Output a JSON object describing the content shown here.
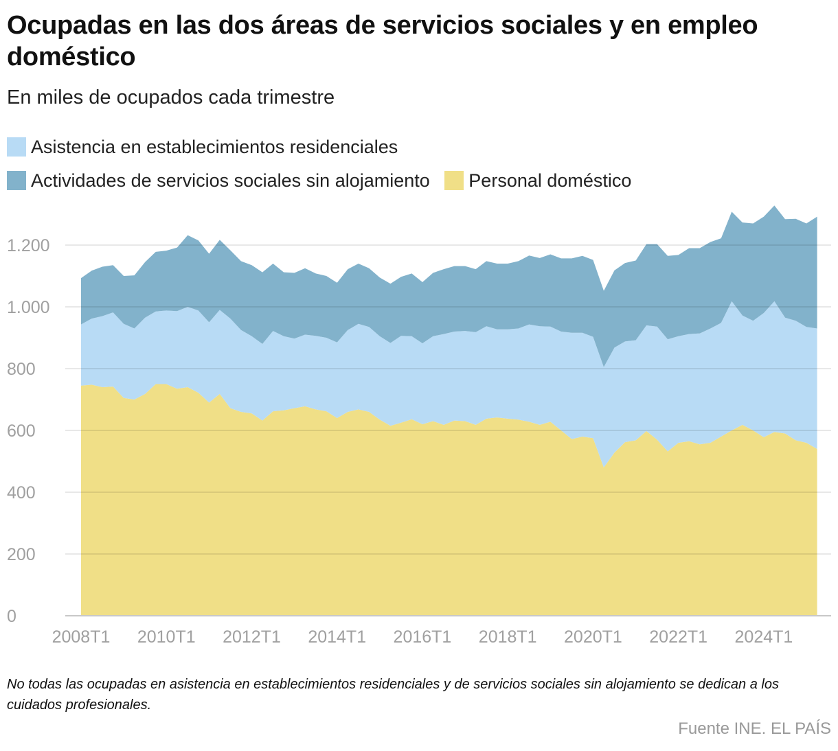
{
  "title": "Ocupadas en las dos áreas de servicios sociales y en empleo doméstico",
  "subtitle": "En miles de ocupados cada trimestre",
  "note": "No todas las ocupadas en asistencia en establecimientos residenciales y de servicios sociales sin alojamiento se dedican a los cuidados profesionales.",
  "source": "Fuente INE. EL PAÍS",
  "chart_data": {
    "type": "area",
    "stacked": true,
    "title": "Ocupadas en las dos áreas de servicios sociales y en empleo doméstico",
    "subtitle": "En miles de ocupados cada trimestre",
    "xlabel": "",
    "ylabel": "",
    "ylim": [
      0,
      1330
    ],
    "yticks": [
      0,
      200,
      400,
      600,
      800,
      1000,
      1200
    ],
    "ytick_labels": [
      "0",
      "200",
      "400",
      "600",
      "800",
      "1.000",
      "1.200"
    ],
    "xtick_labels": [
      "2008T1",
      "2010T1",
      "2012T1",
      "2014T1",
      "2016T1",
      "2018T1",
      "2020T1",
      "2022T1",
      "2024T1"
    ],
    "grid": true,
    "legend": "top",
    "categories": [
      "2008T1",
      "2008T2",
      "2008T3",
      "2008T4",
      "2009T1",
      "2009T2",
      "2009T3",
      "2009T4",
      "2010T1",
      "2010T2",
      "2010T3",
      "2010T4",
      "2011T1",
      "2011T2",
      "2011T3",
      "2011T4",
      "2012T1",
      "2012T2",
      "2012T3",
      "2012T4",
      "2013T1",
      "2013T2",
      "2013T3",
      "2013T4",
      "2014T1",
      "2014T2",
      "2014T3",
      "2014T4",
      "2015T1",
      "2015T2",
      "2015T3",
      "2015T4",
      "2016T1",
      "2016T2",
      "2016T3",
      "2016T4",
      "2017T1",
      "2017T2",
      "2017T3",
      "2017T4",
      "2018T1",
      "2018T2",
      "2018T3",
      "2018T4",
      "2019T1",
      "2019T2",
      "2019T3",
      "2019T4",
      "2020T1",
      "2020T2",
      "2020T3",
      "2020T4",
      "2021T1",
      "2021T2",
      "2021T3",
      "2021T4",
      "2022T1",
      "2022T2",
      "2022T3",
      "2022T4",
      "2023T1",
      "2023T2",
      "2023T3",
      "2023T4",
      "2024T1",
      "2024T2",
      "2024T3",
      "2024T4",
      "2025T1",
      "2025T2"
    ],
    "series": [
      {
        "name": "Personal doméstico",
        "color": "#f0df87",
        "values": [
          745,
          748,
          740,
          742,
          705,
          700,
          718,
          750,
          750,
          735,
          740,
          722,
          690,
          718,
          672,
          660,
          655,
          632,
          662,
          665,
          672,
          678,
          668,
          662,
          640,
          660,
          668,
          660,
          635,
          615,
          625,
          636,
          620,
          630,
          618,
          632,
          630,
          618,
          638,
          642,
          638,
          635,
          628,
          618,
          628,
          600,
          572,
          580,
          575,
          480,
          528,
          562,
          568,
          598,
          570,
          532,
          560,
          565,
          555,
          560,
          580,
          600,
          618,
          600,
          578,
          595,
          590,
          568,
          560,
          540
        ]
      },
      {
        "name": "Asistencia en establecimientos residenciales",
        "color": "#b8dbf5",
        "values": [
          198,
          214,
          230,
          240,
          240,
          230,
          247,
          235,
          238,
          251,
          260,
          266,
          260,
          272,
          290,
          265,
          250,
          248,
          260,
          240,
          225,
          232,
          238,
          238,
          245,
          265,
          277,
          275,
          270,
          268,
          281,
          269,
          262,
          275,
          294,
          288,
          292,
          300,
          299,
          285,
          289,
          295,
          315,
          319,
          308,
          320,
          344,
          336,
          328,
          325,
          340,
          326,
          324,
          342,
          366,
          363,
          345,
          347,
          359,
          370,
          368,
          418,
          354,
          355,
          402,
          423,
          375,
          387,
          375,
          390
        ]
      },
      {
        "name": "Actividades de servicios sociales sin alojamiento",
        "color": "#82b2cb",
        "values": [
          150,
          155,
          160,
          153,
          155,
          172,
          180,
          193,
          194,
          206,
          232,
          227,
          222,
          227,
          221,
          223,
          230,
          232,
          218,
          207,
          213,
          215,
          202,
          200,
          193,
          197,
          195,
          190,
          190,
          192,
          191,
          203,
          198,
          205,
          210,
          212,
          210,
          204,
          211,
          213,
          213,
          218,
          223,
          221,
          234,
          237,
          241,
          249,
          249,
          247,
          250,
          254,
          258,
          263,
          267,
          270,
          263,
          278,
          276,
          280,
          274,
          290,
          301,
          315,
          312,
          310,
          319,
          330,
          335,
          362
        ]
      }
    ]
  },
  "legend": [
    {
      "label": "Asistencia en establecimientos residenciales",
      "color": "#b8dbf5"
    },
    {
      "label": "Actividades de servicios sociales sin alojamiento",
      "color": "#82b2cb"
    },
    {
      "label": "Personal doméstico",
      "color": "#f0df87"
    }
  ]
}
